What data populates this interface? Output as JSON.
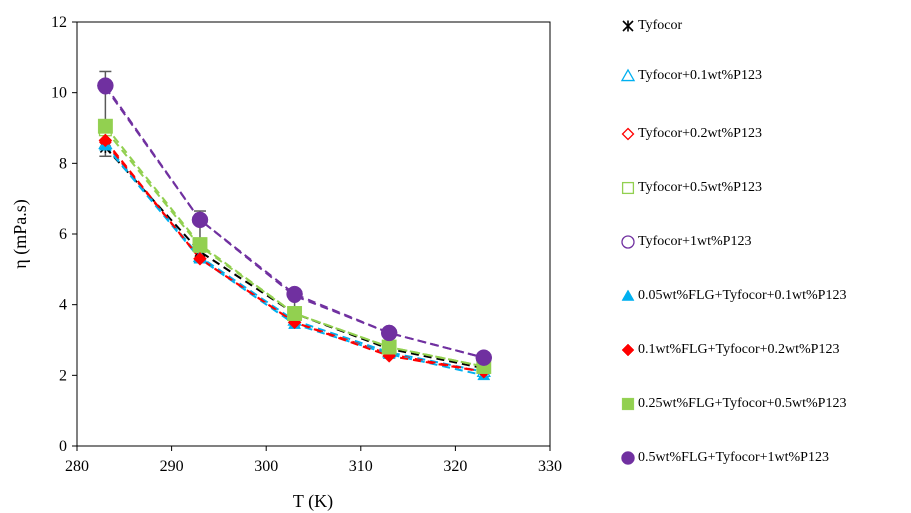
{
  "chart_data": {
    "type": "line",
    "xlabel": "T (K)",
    "ylabel": "η (mPa.s)",
    "xlim": [
      280,
      330
    ],
    "ylim": [
      0,
      12
    ],
    "x_ticks": [
      "280",
      "290",
      "300",
      "310",
      "320",
      "330"
    ],
    "y_ticks": [
      "0",
      "2",
      "4",
      "6",
      "8",
      "10",
      "12"
    ],
    "grid": false,
    "legend_position": "right",
    "x": [
      283,
      293,
      303,
      313,
      323
    ],
    "series": [
      {
        "name": "Tyfocor",
        "marker": "asterisk",
        "color": "#000000",
        "line": "dashed",
        "values": [
          8.45,
          5.5,
          3.75,
          2.75,
          2.2
        ]
      },
      {
        "name": "Tyfocor+0.1wt%P123",
        "marker": "open-triangle",
        "color": "#00B0F0",
        "line": "dashed",
        "values": [
          8.55,
          5.35,
          3.55,
          2.65,
          2.1
        ]
      },
      {
        "name": "Tyfocor+0.2wt%P123",
        "marker": "open-diamond",
        "color": "#FF0000",
        "line": "dashed",
        "values": [
          8.6,
          5.3,
          3.5,
          2.6,
          2.1
        ]
      },
      {
        "name": "Tyfocor+0.5wt%P123",
        "marker": "open-square",
        "color": "#92D050",
        "line": "dashed",
        "values": [
          8.95,
          5.65,
          3.75,
          2.8,
          2.25
        ]
      },
      {
        "name": "Tyfocor+1wt%P123",
        "marker": "open-circle",
        "color": "#7030A0",
        "line": "dashed",
        "values": [
          10.15,
          6.4,
          4.25,
          3.2,
          2.5
        ]
      },
      {
        "name": "0.05wt%FLG+Tyfocor+0.1wt%P123",
        "marker": "filled-triangle",
        "color": "#00B0F0",
        "line": "dashed",
        "values": [
          8.5,
          5.3,
          3.45,
          2.6,
          2.0
        ]
      },
      {
        "name": "0.1wt%FLG+Tyfocor+0.2wt%P123",
        "marker": "filled-diamond",
        "color": "#FF0000",
        "line": "dashed",
        "values": [
          8.65,
          5.3,
          3.5,
          2.55,
          2.1
        ]
      },
      {
        "name": "0.25wt%FLG+Tyfocor+0.5wt%P123",
        "marker": "filled-square",
        "color": "#92D050",
        "line": "dashed",
        "values": [
          9.05,
          5.7,
          3.75,
          2.8,
          2.25
        ]
      },
      {
        "name": "0.5wt%FLG+Tyfocor+1wt%P123",
        "marker": "filled-circle",
        "color": "#7030A0",
        "line": "dashed",
        "values": [
          10.2,
          6.4,
          4.3,
          3.2,
          2.5
        ]
      }
    ],
    "error_bars": {
      "x": [
        283,
        293,
        303
      ],
      "low": [
        8.2,
        5.2,
        3.6
      ],
      "high": [
        10.6,
        6.65,
        4.4
      ]
    }
  }
}
